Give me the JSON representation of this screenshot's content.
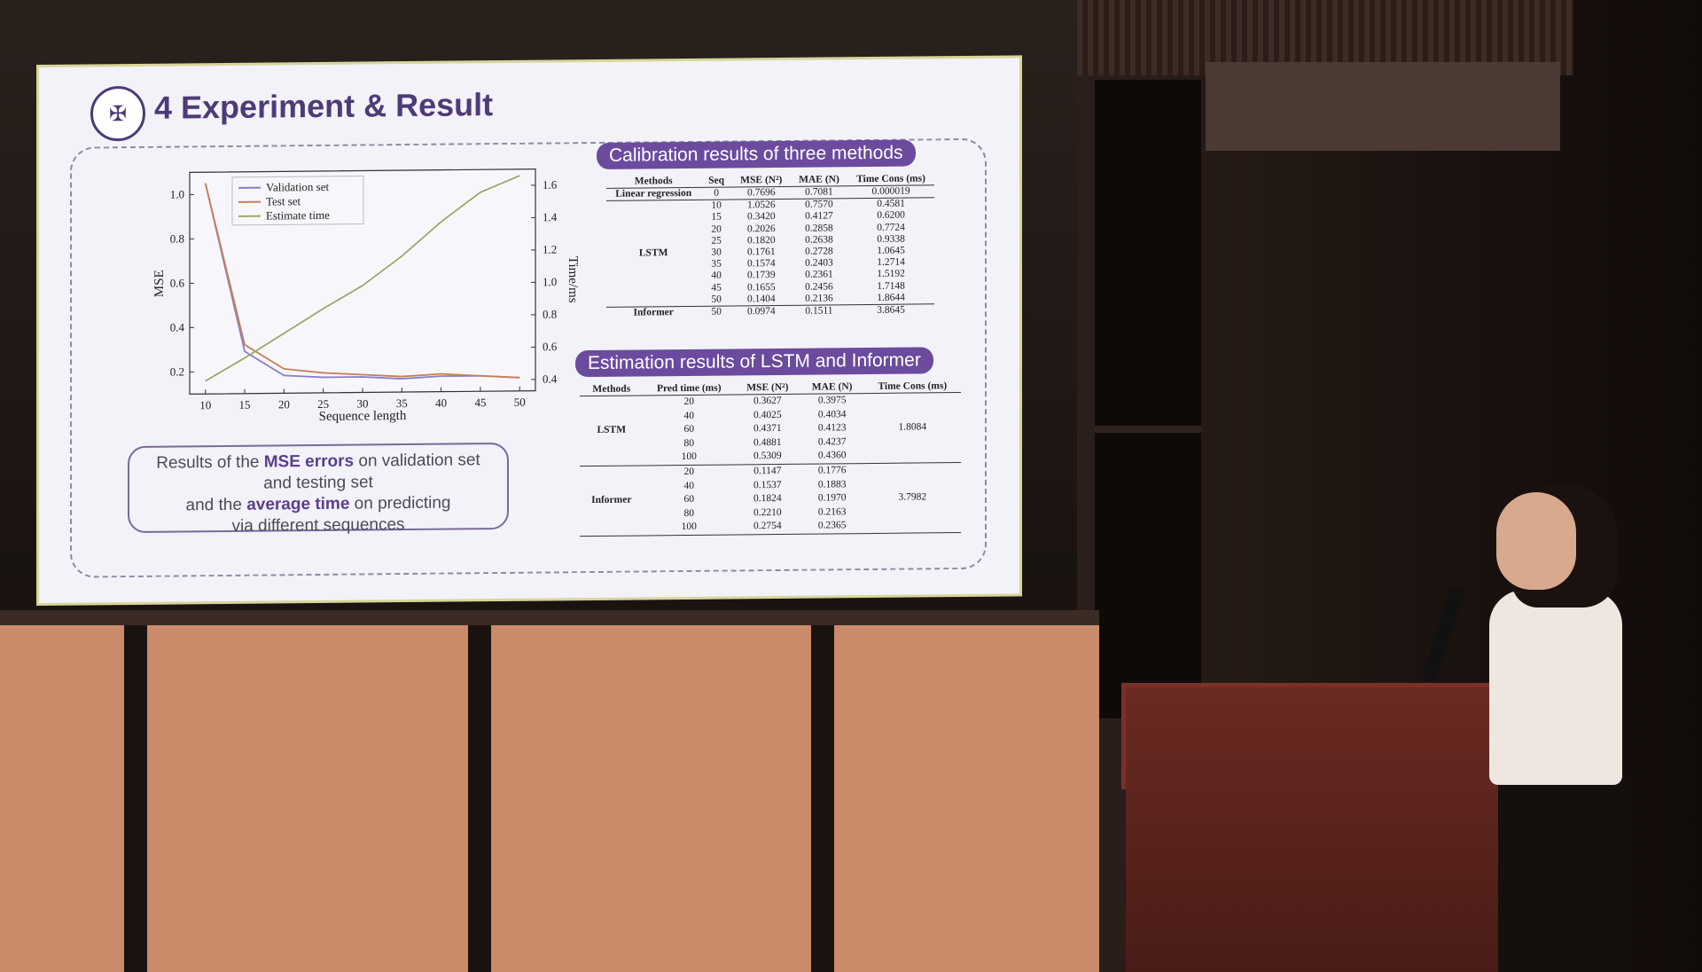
{
  "slide": {
    "title": "4 Experiment & Result",
    "logo_icon": "university-seal-icon"
  },
  "chart_data": {
    "type": "line",
    "xlabel": "Sequence length",
    "ylabel": "MSE",
    "y2label": "Time/ms",
    "x": [
      10,
      15,
      20,
      25,
      30,
      35,
      40,
      45,
      50
    ],
    "xlim": [
      8,
      52
    ],
    "ylim": [
      0.1,
      1.1
    ],
    "y2lim": [
      0.33,
      1.7
    ],
    "xticks": [
      "10",
      "15",
      "20",
      "25",
      "30",
      "35",
      "40",
      "45",
      "50"
    ],
    "yticks": [
      "0.2",
      "0.4",
      "0.6",
      "0.8",
      "1.0"
    ],
    "y2ticks": [
      "0.4",
      "0.6",
      "0.8",
      "1.0",
      "1.2",
      "1.4",
      "1.6"
    ],
    "legend_position": "top-left",
    "series": [
      {
        "name": "Validation set",
        "color": "#8a7ec8",
        "axis": "left",
        "values": [
          1.05,
          0.29,
          0.18,
          0.17,
          0.17,
          0.16,
          0.17,
          0.17,
          0.16
        ]
      },
      {
        "name": "Test set",
        "color": "#c87f55",
        "axis": "left",
        "values": [
          1.05,
          0.32,
          0.21,
          0.19,
          0.18,
          0.17,
          0.18,
          0.17,
          0.16
        ]
      },
      {
        "name": "Estimate time",
        "color": "#9aa86a",
        "axis": "right",
        "values": [
          0.41,
          0.55,
          0.7,
          0.85,
          0.99,
          1.17,
          1.38,
          1.56,
          1.66
        ]
      }
    ]
  },
  "caption": {
    "l1a": "Results of the ",
    "l1b": "MSE errors",
    "l1c": " on validation set",
    "l2": "and testing set",
    "l3a": "and the ",
    "l3b": "average time",
    "l3c": " on predicting",
    "l4": "via different sequences"
  },
  "table1": {
    "title": "Calibration results of three methods",
    "headers": [
      "Methods",
      "Seq",
      "MSE (N²)",
      "MAE (N)",
      "Time Cons (ms)"
    ],
    "linear": {
      "method": "Linear regression",
      "row": [
        "0",
        "0.7696",
        "0.7081",
        "0.000019"
      ]
    },
    "lstm_label": "LSTM",
    "lstm_rows": [
      [
        "10",
        "1.0526",
        "0.7570",
        "0.4581"
      ],
      [
        "15",
        "0.3420",
        "0.4127",
        "0.6200"
      ],
      [
        "20",
        "0.2026",
        "0.2858",
        "0.7724"
      ],
      [
        "25",
        "0.1820",
        "0.2638",
        "0.9338"
      ],
      [
        "30",
        "0.1761",
        "0.2728",
        "1.0645"
      ],
      [
        "35",
        "0.1574",
        "0.2403",
        "1.2714"
      ],
      [
        "40",
        "0.1739",
        "0.2361",
        "1.5192"
      ],
      [
        "45",
        "0.1655",
        "0.2456",
        "1.7148"
      ],
      [
        "50",
        "0.1404",
        "0.2136",
        "1.8644"
      ]
    ],
    "informer": {
      "method": "Informer",
      "row": [
        "50",
        "0.0974",
        "0.1511",
        "3.8645"
      ]
    }
  },
  "table2": {
    "title": "Estimation results of LSTM and Informer",
    "headers": [
      "Methods",
      "Pred time (ms)",
      "MSE (N²)",
      "MAE (N)",
      "Time Cons (ms)"
    ],
    "lstm": {
      "label": "LSTM",
      "time": "1.8084",
      "rows": [
        [
          "20",
          "0.3627",
          "0.3975"
        ],
        [
          "40",
          "0.4025",
          "0.4034"
        ],
        [
          "60",
          "0.4371",
          "0.4123"
        ],
        [
          "80",
          "0.4881",
          "0.4237"
        ],
        [
          "100",
          "0.5309",
          "0.4360"
        ]
      ]
    },
    "informer": {
      "label": "Informer",
      "time": "3.7982",
      "rows": [
        [
          "20",
          "0.1147",
          "0.1776"
        ],
        [
          "40",
          "0.1537",
          "0.1883"
        ],
        [
          "60",
          "0.1824",
          "0.1970"
        ],
        [
          "80",
          "0.2210",
          "0.2163"
        ],
        [
          "100",
          "0.2754",
          "0.2365"
        ]
      ]
    }
  }
}
